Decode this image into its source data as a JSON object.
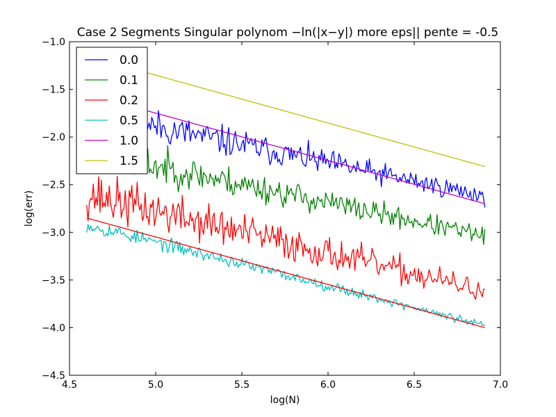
{
  "chart_data": {
    "type": "line",
    "title": "Case 2 Segments Singular polynom −ln(|x−y|) more eps|| pente = -0.5",
    "xlabel": "log(N)",
    "ylabel": "log(err)",
    "xlim": [
      4.5,
      7.0
    ],
    "ylim": [
      -4.5,
      -1.0
    ],
    "xticks": [
      4.5,
      5.0,
      5.5,
      6.0,
      6.5,
      7.0
    ],
    "xtick_labels": [
      "4.5",
      "5.0",
      "5.5",
      "6.0",
      "6.5",
      "7.0"
    ],
    "yticks": [
      -4.5,
      -4.0,
      -3.5,
      -3.0,
      -2.5,
      -2.0,
      -1.5,
      -1.0
    ],
    "ytick_labels": [
      "−4.5",
      "−4.0",
      "−3.5",
      "−3.0",
      "−2.5",
      "−2.0",
      "−1.5",
      "−1.0"
    ],
    "grid": false,
    "legend_position": "top-left",
    "x_range": [
      4.6,
      6.91
    ],
    "series": [
      {
        "name": "0.0",
        "color": "#0000ff",
        "y_start": -1.74,
        "y_end": -2.62,
        "noise": 0.11,
        "seed": 11
      },
      {
        "name": "0.1",
        "color": "#008000",
        "y_start": -2.15,
        "y_end": -3.04,
        "noise": 0.11,
        "seed": 23
      },
      {
        "name": "0.2",
        "color": "#ff0000",
        "y_start": -2.6,
        "y_end": -3.62,
        "noise": 0.14,
        "seed": 37
      },
      {
        "name": "0.5",
        "color": "#00bfbf",
        "y_start": -2.92,
        "y_end": -3.98,
        "noise": 0.045,
        "seed": 53
      },
      {
        "name": "1.0",
        "color": "#bf00bf",
        "y_start": -1.55,
        "y_end": -2.7,
        "noise": 0.0,
        "seed": 0
      },
      {
        "name": "1.5",
        "color": "#bfbf00",
        "y_start": -1.15,
        "y_end": -2.31,
        "noise": 0.0,
        "seed": 0
      },
      {
        "name": "0.2 fit",
        "color": "#ff0000",
        "y_start": -2.85,
        "y_end": -4.0,
        "noise": 0.0,
        "seed": 0,
        "in_legend": false
      }
    ],
    "legend_entries": [
      "0.0",
      "0.1",
      "0.2",
      "0.5",
      "1.0",
      "1.5"
    ]
  }
}
